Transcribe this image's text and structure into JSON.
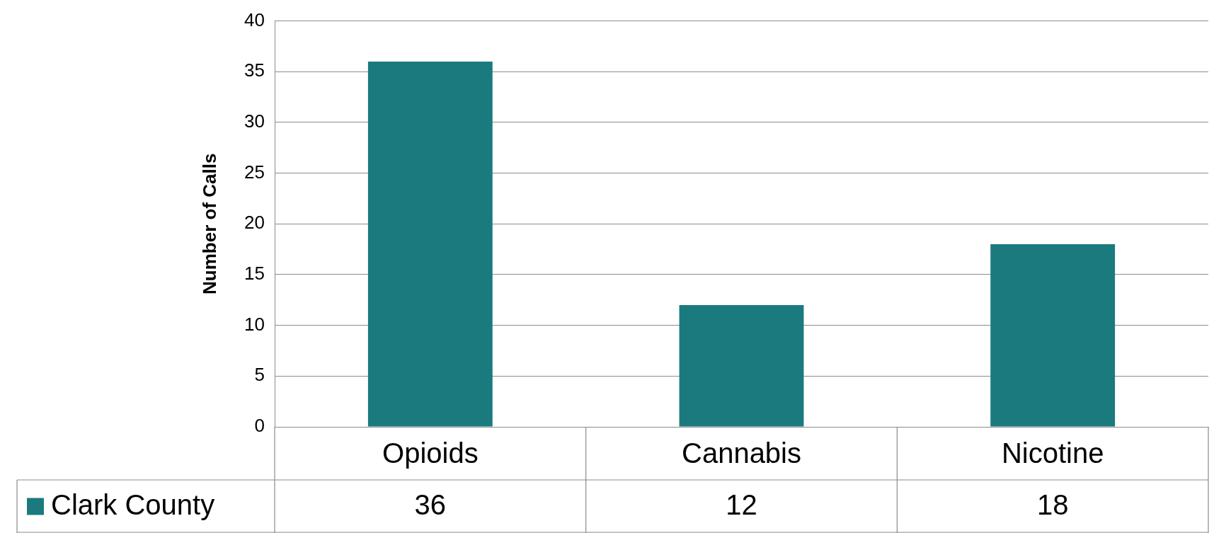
{
  "chart_data": {
    "type": "bar",
    "ylabel": "Number of Calls",
    "categories": [
      "Opioids",
      "Cannabis",
      "Nicotine"
    ],
    "series": [
      {
        "name": "Clark County",
        "color": "#1b7a7e",
        "values": [
          36,
          12,
          18
        ]
      }
    ],
    "ylim": [
      0,
      40
    ],
    "yticks": [
      0,
      5,
      10,
      15,
      20,
      25,
      30,
      35,
      40
    ],
    "grid": "y",
    "data_labels": true
  }
}
